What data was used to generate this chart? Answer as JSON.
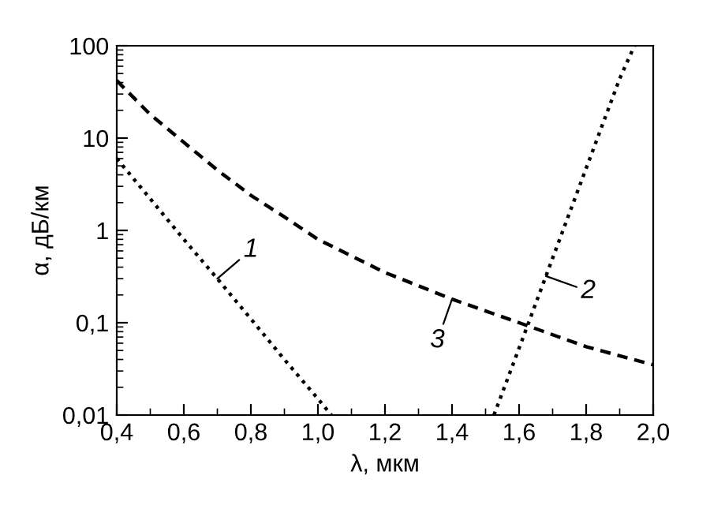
{
  "chart_data": {
    "type": "line",
    "xlabel": "λ, мкм",
    "ylabel": "α, дБ/км",
    "log": "y",
    "xlim": [
      0.4,
      2.0
    ],
    "ylim": [
      0.01,
      100
    ],
    "xticks": [
      {
        "value": 0.4,
        "label": "0,4"
      },
      {
        "value": 0.6,
        "label": "0,6"
      },
      {
        "value": 0.8,
        "label": "0,8"
      },
      {
        "value": 1.0,
        "label": "1,0"
      },
      {
        "value": 1.2,
        "label": "1,2"
      },
      {
        "value": 1.4,
        "label": "1,4"
      },
      {
        "value": 1.6,
        "label": "1,6"
      },
      {
        "value": 1.8,
        "label": "1,8"
      },
      {
        "value": 2.0,
        "label": "2,0"
      }
    ],
    "yticks": [
      {
        "value": 0.01,
        "label": "0,01"
      },
      {
        "value": 0.1,
        "label": "0,1"
      },
      1,
      10,
      100
    ],
    "grid": false,
    "legend": false,
    "marker": "none",
    "series": [
      {
        "color": "#000000",
        "line_style": "dotted",
        "x": [
          0.4,
          0.5,
          0.6,
          0.7,
          0.8,
          0.9,
          1.0,
          1.04
        ],
        "values": [
          6,
          2.2,
          0.8,
          0.3,
          0.11,
          0.04,
          0.015,
          0.01
        ]
      },
      {
        "color": "#000000",
        "line_style": "dotted",
        "x": [
          1.525,
          1.6,
          1.7,
          1.8,
          1.9,
          1.944
        ],
        "values": [
          0.01,
          0.053,
          0.5,
          4.7,
          44,
          100
        ]
      },
      {
        "color": "#000000",
        "line_style": "dashed",
        "x": [
          0.4,
          0.5,
          0.6,
          0.7,
          0.8,
          0.9,
          1.0,
          1.2,
          1.4,
          1.6,
          1.8,
          2.0
        ],
        "values": [
          42,
          18,
          9,
          4.5,
          2.4,
          1.4,
          0.8,
          0.35,
          0.18,
          0.1,
          0.055,
          0.035
        ]
      }
    ],
    "annotations": [
      {
        "text": "1",
        "x": 0.7,
        "y": 0.3
      },
      {
        "text": "2",
        "x": 1.68,
        "y": 0.32
      },
      {
        "text": "3",
        "x": 1.4,
        "y": 0.18
      }
    ]
  }
}
